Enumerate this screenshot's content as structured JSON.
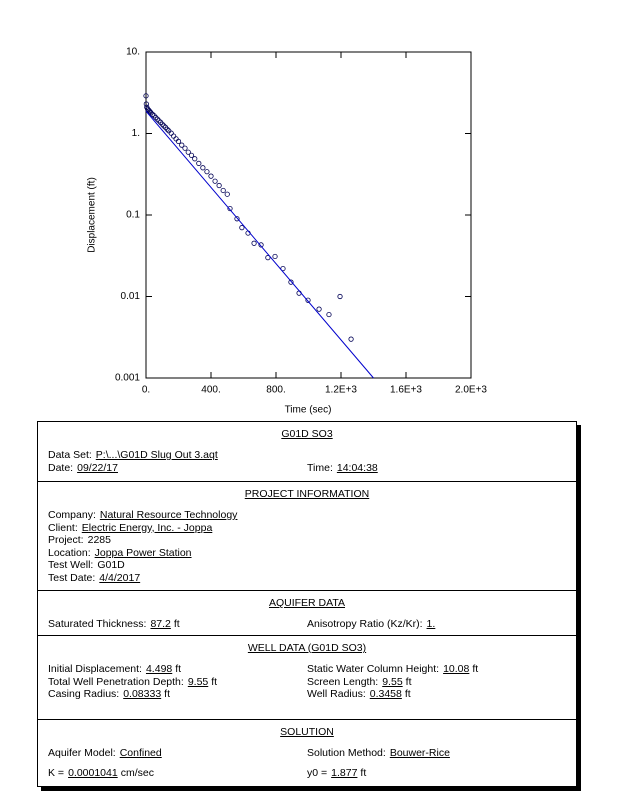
{
  "chart_data": {
    "type": "scatter",
    "xlabel": "Time (sec)",
    "ylabel": "Displacement (ft)",
    "xlim": [
      0,
      2000
    ],
    "ylim": [
      0.001,
      10
    ],
    "ylog": true,
    "xticks": [
      {
        "value": 0,
        "label": "0."
      },
      {
        "value": 400,
        "label": "400."
      },
      {
        "value": 800,
        "label": "800."
      },
      {
        "value": 1200,
        "label": "1.2E+3"
      },
      {
        "value": 1600,
        "label": "1.6E+3"
      },
      {
        "value": 2000,
        "label": "2.0E+3"
      }
    ],
    "yticks": [
      0.001,
      0.01,
      0.1,
      {
        "value": 1,
        "label": "1."
      },
      {
        "value": 10,
        "label": "10."
      }
    ],
    "series": [
      {
        "type": "scatter",
        "color": "#000055",
        "x": [
          0,
          2,
          5,
          10,
          15,
          20,
          25,
          30,
          40,
          50,
          60,
          70,
          80,
          90,
          100,
          110,
          120,
          130,
          140,
          155,
          170,
          185,
          200,
          220,
          240,
          260,
          280,
          300,
          325,
          350,
          375,
          400,
          425,
          450,
          475,
          500,
          517,
          560,
          590,
          628,
          665,
          708,
          750,
          794,
          843,
          892,
          942,
          997,
          1065,
          1126,
          1194,
          1262
        ],
        "y": [
          2.9,
          2.3,
          2.1,
          2.0,
          1.95,
          1.9,
          1.85,
          1.8,
          1.72,
          1.65,
          1.57,
          1.5,
          1.43,
          1.37,
          1.3,
          1.24,
          1.19,
          1.13,
          1.08,
          1.01,
          0.93,
          0.86,
          0.8,
          0.72,
          0.66,
          0.59,
          0.54,
          0.49,
          0.43,
          0.38,
          0.34,
          0.3,
          0.26,
          0.23,
          0.2,
          0.18,
          0.12,
          0.09,
          0.07,
          0.06,
          0.045,
          0.043,
          0.03,
          0.031,
          0.022,
          0.015,
          0.011,
          0.009,
          0.007,
          0.006,
          0.01,
          0.003
        ]
      },
      {
        "type": "line",
        "color": "#0000cc",
        "x": [
          0,
          1400
        ],
        "y": [
          1.877,
          0.001
        ]
      }
    ]
  },
  "report": {
    "sections": [
      {
        "title": "G01D SO3",
        "rows": [
          [
            {
              "label": "Data Set:",
              "value": "P:\\...\\G01D Slug Out 3.aqt"
            }
          ],
          [
            {
              "label": "Date:",
              "value": "09/22/17"
            },
            {
              "label": "Time:",
              "value": "14:04:38"
            }
          ]
        ]
      },
      {
        "title": "PROJECT INFORMATION",
        "rows": [
          [
            {
              "label": "Company:",
              "value": "Natural Resource Technology"
            }
          ],
          [
            {
              "label": "Client:",
              "value": "Electric Energy, Inc. - Joppa"
            }
          ],
          [
            {
              "label": "Project:",
              "value": "2285",
              "plain": true
            }
          ],
          [
            {
              "label": "Location:",
              "value": "Joppa Power Station"
            }
          ],
          [
            {
              "label": "Test Well:",
              "value": "G01D",
              "plain": true
            }
          ],
          [
            {
              "label": "Test Date:",
              "value": "4/4/2017"
            }
          ]
        ]
      },
      {
        "title": "AQUIFER DATA",
        "rows": [
          [
            {
              "label": "Saturated Thickness:",
              "value": "87.2",
              "unit": "ft"
            },
            {
              "label": "Anisotropy Ratio (Kz/Kr):",
              "value": "1."
            }
          ]
        ]
      },
      {
        "title": "WELL DATA (G01D SO3)",
        "rows": [
          [
            {
              "label": "Initial Displacement:",
              "value": "4.498",
              "unit": "ft"
            },
            {
              "label": "Static Water Column Height:",
              "value": "10.08",
              "unit": "ft"
            }
          ],
          [
            {
              "label": "Total Well Penetration Depth:",
              "value": "9.55",
              "unit": "ft"
            },
            {
              "label": "Screen Length:",
              "value": "9.55",
              "unit": "ft"
            }
          ],
          [
            {
              "label": "Casing Radius:",
              "value": "0.08333",
              "unit": "ft"
            },
            {
              "label": "Well Radius:",
              "value": "0.3458",
              "unit": "ft"
            }
          ]
        ]
      },
      {
        "title": "SOLUTION",
        "rows": [
          [
            {
              "label": "Aquifer Model:",
              "value": "Confined"
            },
            {
              "label": "Solution Method:",
              "value": "Bouwer-Rice"
            }
          ],
          [
            {
              "label": "K =",
              "value": "0.0001041",
              "unit": "cm/sec"
            },
            {
              "label": "y0 =",
              "value": "1.877",
              "unit": "ft"
            }
          ]
        ]
      }
    ]
  }
}
